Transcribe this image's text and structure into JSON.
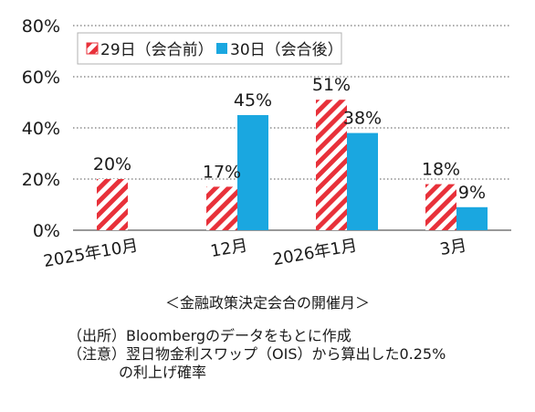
{
  "chart_data": {
    "type": "bar",
    "categories": [
      "2025年10月",
      "12月",
      "2026年1月",
      "3月"
    ],
    "series": [
      {
        "name": "29日（会合前）",
        "values": [
          20,
          17,
          51,
          18
        ],
        "labels": [
          "20%",
          "17%",
          "51%",
          "18%"
        ],
        "fill": "stripes",
        "color": "#e8313a"
      },
      {
        "name": "30日（会合後）",
        "values": [
          null,
          45,
          38,
          9
        ],
        "labels": [
          "",
          "45%",
          "38%",
          "9%"
        ],
        "fill": "solid",
        "color": "#1aa7e0"
      }
    ],
    "yticks": [
      "0%",
      "20%",
      "40%",
      "60%",
      "80%"
    ],
    "ylim": [
      0,
      80
    ],
    "grid": "dotted",
    "legend_position": "top"
  },
  "xtitle": "＜金融政策決定会合の開催月＞",
  "notes": {
    "source": "（出所）Bloombergのデータをもとに作成",
    "note_line1": "（注意）翌日物金利スワップ（OIS）から算出した0.25%",
    "note_line2": "の利上げ確率"
  }
}
